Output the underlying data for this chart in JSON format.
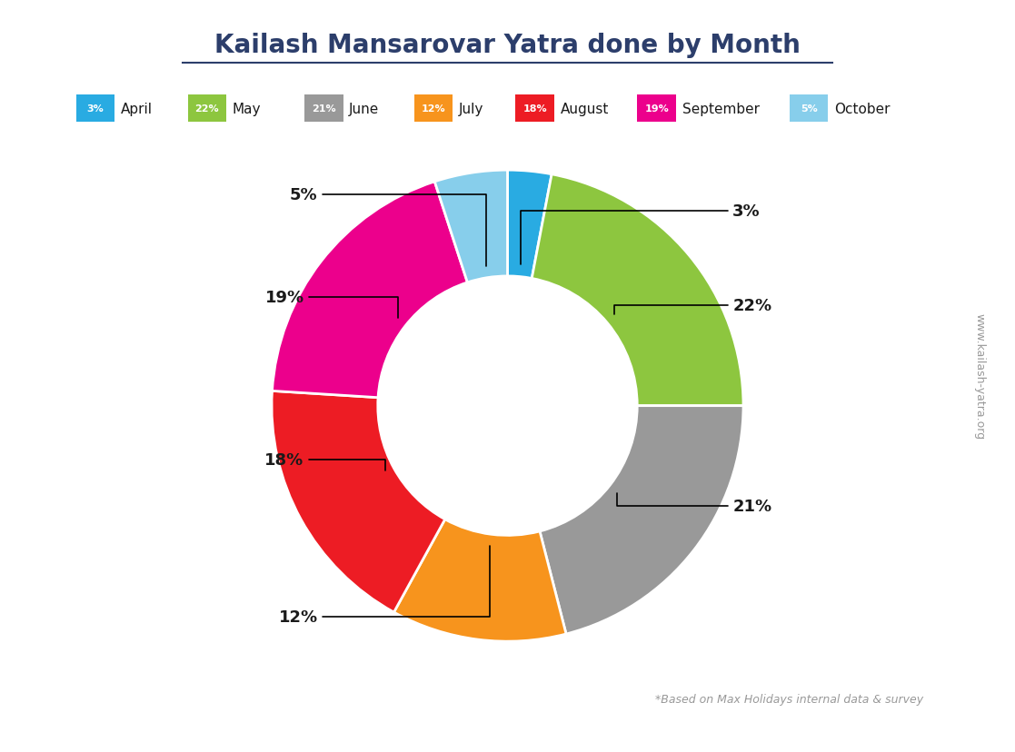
{
  "title": "Kailash Mansarovar Yatra done by Month",
  "months": [
    "April",
    "May",
    "June",
    "July",
    "August",
    "September",
    "October"
  ],
  "values": [
    3,
    22,
    21,
    12,
    18,
    19,
    5
  ],
  "colors": [
    "#29ABE2",
    "#8DC63F",
    "#999999",
    "#F7941D",
    "#ED1C24",
    "#EC008C",
    "#87CEEB"
  ],
  "watermark": "www.kailash-yatra.org",
  "footnote": "*Based on Max Holidays internal data & survey",
  "bg_color": "#FFFFFF",
  "title_color": "#2C3E6B"
}
